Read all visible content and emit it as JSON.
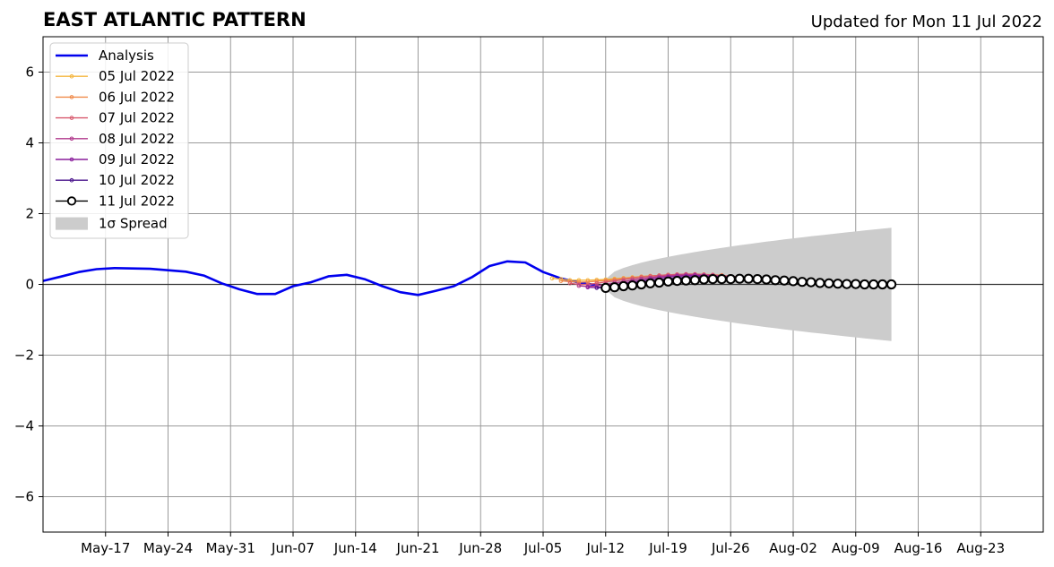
{
  "chart_data": {
    "type": "line",
    "title": "EAST ATLANTIC PATTERN",
    "subtitle": "Updated for Mon 11 Jul 2022",
    "xlabel": "",
    "ylabel": "",
    "ylim": [
      -7,
      7
    ],
    "xlim": [
      "2022-05-10",
      "2022-08-30"
    ],
    "y_ticks": [
      6,
      4,
      2,
      0,
      -2,
      -4,
      -6
    ],
    "y_tick_labels": [
      "6",
      "4",
      "2",
      "0",
      "−2",
      "−4",
      "−6"
    ],
    "x_ticks": [
      "2022-05-17",
      "2022-05-24",
      "2022-05-31",
      "2022-06-07",
      "2022-06-14",
      "2022-06-21",
      "2022-06-28",
      "2022-07-05",
      "2022-07-12",
      "2022-07-19",
      "2022-07-26",
      "2022-08-02",
      "2022-08-09",
      "2022-08-16",
      "2022-08-23"
    ],
    "x_tick_labels": [
      "May-17",
      "May-24",
      "May-31",
      "Jun-07",
      "Jun-14",
      "Jun-21",
      "Jun-28",
      "Jul-05",
      "Jul-12",
      "Jul-19",
      "Jul-26",
      "Aug-02",
      "Aug-09",
      "Aug-16",
      "Aug-23"
    ],
    "grid": true,
    "legend_position": "top-left",
    "series": [
      {
        "name": "Analysis",
        "color": "#0000ee",
        "x": [
          "2022-05-10",
          "2022-05-12",
          "2022-05-14",
          "2022-05-16",
          "2022-05-18",
          "2022-05-20",
          "2022-05-22",
          "2022-05-24",
          "2022-05-26",
          "2022-05-28",
          "2022-05-30",
          "2022-06-01",
          "2022-06-03",
          "2022-06-05",
          "2022-06-07",
          "2022-06-09",
          "2022-06-11",
          "2022-06-13",
          "2022-06-15",
          "2022-06-17",
          "2022-06-19",
          "2022-06-21",
          "2022-06-23",
          "2022-06-25",
          "2022-06-27",
          "2022-06-29",
          "2022-07-01",
          "2022-07-03",
          "2022-07-05",
          "2022-07-07",
          "2022-07-09",
          "2022-07-11"
        ],
        "values": [
          0.1,
          0.22,
          0.35,
          0.43,
          0.46,
          0.45,
          0.44,
          0.4,
          0.36,
          0.25,
          0.03,
          -0.14,
          -0.27,
          -0.27,
          -0.05,
          0.06,
          0.23,
          0.27,
          0.15,
          -0.05,
          -0.22,
          -0.3,
          -0.18,
          -0.05,
          0.2,
          0.52,
          0.65,
          0.62,
          0.35,
          0.17,
          0.05,
          -0.02
        ]
      },
      {
        "name": "05 Jul 2022",
        "color": "#f4b43c",
        "start": "2022-07-06",
        "values": [
          0.17,
          0.15,
          0.12,
          0.12,
          0.12,
          0.13,
          0.14,
          0.16,
          0.18,
          0.2,
          0.22,
          0.24,
          0.25,
          0.26,
          0.27,
          0.28,
          0.28,
          0.28,
          0.27,
          0.26
        ]
      },
      {
        "name": "06 Jul 2022",
        "color": "#f08a4a",
        "start": "2022-07-07",
        "values": [
          0.1,
          0.08,
          0.06,
          0.07,
          0.09,
          0.11,
          0.14,
          0.17,
          0.19,
          0.22,
          0.24,
          0.25,
          0.27,
          0.28,
          0.28,
          0.28,
          0.27,
          0.26,
          0.25,
          0.23
        ]
      },
      {
        "name": "07 Jul 2022",
        "color": "#d85a6e",
        "start": "2022-07-08",
        "values": [
          0.03,
          0.0,
          0.0,
          0.03,
          0.07,
          0.1,
          0.14,
          0.17,
          0.2,
          0.23,
          0.25,
          0.27,
          0.28,
          0.29,
          0.29,
          0.28,
          0.27,
          0.25,
          0.23,
          0.21
        ]
      },
      {
        "name": "08 Jul 2022",
        "color": "#b0388c",
        "start": "2022-07-09",
        "values": [
          -0.04,
          -0.06,
          -0.04,
          0.0,
          0.04,
          0.08,
          0.12,
          0.16,
          0.19,
          0.22,
          0.24,
          0.26,
          0.27,
          0.27,
          0.26,
          0.25,
          0.23,
          0.21,
          0.19,
          0.17
        ]
      },
      {
        "name": "09 Jul 2022",
        "color": "#8a1e9c",
        "start": "2022-07-10",
        "values": [
          -0.08,
          -0.09,
          -0.05,
          -0.01,
          0.03,
          0.07,
          0.11,
          0.15,
          0.18,
          0.21,
          0.23,
          0.24,
          0.25,
          0.24,
          0.23,
          0.22,
          0.2,
          0.18,
          0.16,
          0.14
        ]
      },
      {
        "name": "10 Jul 2022",
        "color": "#4a148c",
        "start": "2022-07-11",
        "values": [
          -0.1,
          -0.08,
          -0.05,
          -0.01,
          0.03,
          0.07,
          0.1,
          0.13,
          0.16,
          0.18,
          0.2,
          0.21,
          0.21,
          0.2,
          0.19,
          0.18,
          0.16,
          0.14,
          0.12,
          0.1
        ]
      },
      {
        "name": "11 Jul 2022",
        "color": "#000000",
        "start": "2022-07-12",
        "values": [
          -0.1,
          -0.08,
          -0.05,
          -0.03,
          0.0,
          0.03,
          0.05,
          0.08,
          0.1,
          0.11,
          0.12,
          0.14,
          0.15,
          0.15,
          0.15,
          0.16,
          0.16,
          0.15,
          0.14,
          0.12,
          0.11,
          0.09,
          0.07,
          0.06,
          0.04,
          0.03,
          0.02,
          0.01,
          0.01,
          0.0,
          0.0,
          0.0,
          0.0
        ]
      }
    ],
    "spread": {
      "name": "1σ Spread",
      "color": "#cccccc",
      "start": "2022-07-12",
      "end": "2022-08-13",
      "half_width": [
        0.15,
        1.6
      ]
    }
  }
}
